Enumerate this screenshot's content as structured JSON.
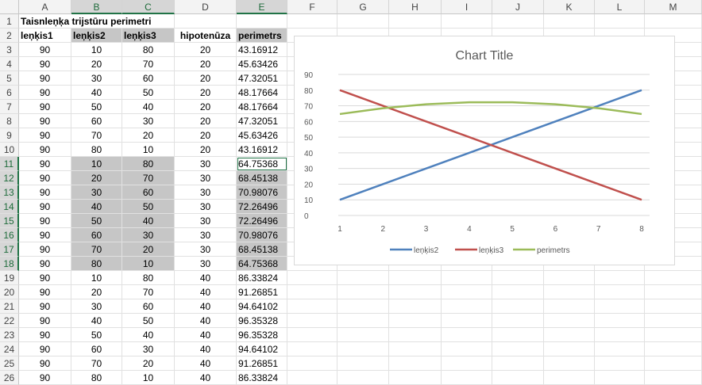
{
  "columns": [
    "A",
    "B",
    "C",
    "D",
    "E",
    "F",
    "G",
    "H",
    "I",
    "J",
    "K",
    "L",
    "M"
  ],
  "rows": [
    1,
    2,
    3,
    4,
    5,
    6,
    7,
    8,
    9,
    10,
    11,
    12,
    13,
    14,
    15,
    16,
    17,
    18,
    19,
    20,
    21,
    22,
    23,
    24,
    25,
    26
  ],
  "title_cell": "Taisnleņķa trijstūru perimetri",
  "headers": {
    "a": "leņķis1",
    "b": "leņķis2",
    "c": "leņķis3",
    "d": "hipotenūza",
    "e": "perimetrs"
  },
  "data": [
    [
      "90",
      "10",
      "80",
      "20",
      "43.16912"
    ],
    [
      "90",
      "20",
      "70",
      "20",
      "45.63426"
    ],
    [
      "90",
      "30",
      "60",
      "20",
      "47.32051"
    ],
    [
      "90",
      "40",
      "50",
      "20",
      "48.17664"
    ],
    [
      "90",
      "50",
      "40",
      "20",
      "48.17664"
    ],
    [
      "90",
      "60",
      "30",
      "20",
      "47.32051"
    ],
    [
      "90",
      "70",
      "20",
      "20",
      "45.63426"
    ],
    [
      "90",
      "80",
      "10",
      "20",
      "43.16912"
    ],
    [
      "90",
      "10",
      "80",
      "30",
      "64.75368"
    ],
    [
      "90",
      "20",
      "70",
      "30",
      "68.45138"
    ],
    [
      "90",
      "30",
      "60",
      "30",
      "70.98076"
    ],
    [
      "90",
      "40",
      "50",
      "30",
      "72.26496"
    ],
    [
      "90",
      "50",
      "40",
      "30",
      "72.26496"
    ],
    [
      "90",
      "60",
      "30",
      "30",
      "70.98076"
    ],
    [
      "90",
      "70",
      "20",
      "30",
      "68.45138"
    ],
    [
      "90",
      "80",
      "10",
      "30",
      "64.75368"
    ],
    [
      "90",
      "10",
      "80",
      "40",
      "86.33824"
    ],
    [
      "90",
      "20",
      "70",
      "40",
      "91.26851"
    ],
    [
      "90",
      "30",
      "60",
      "40",
      "94.64102"
    ],
    [
      "90",
      "40",
      "50",
      "40",
      "96.35328"
    ],
    [
      "90",
      "50",
      "40",
      "40",
      "96.35328"
    ],
    [
      "90",
      "60",
      "30",
      "40",
      "94.64102"
    ],
    [
      "90",
      "70",
      "20",
      "40",
      "91.26851"
    ],
    [
      "90",
      "80",
      "10",
      "40",
      "86.33824"
    ]
  ],
  "chart_data": {
    "type": "line",
    "title": "Chart Title",
    "categories": [
      "1",
      "2",
      "3",
      "4",
      "5",
      "6",
      "7",
      "8"
    ],
    "ylim": [
      0,
      90
    ],
    "yticks": [
      "0",
      "10",
      "20",
      "30",
      "40",
      "50",
      "60",
      "70",
      "80",
      "90"
    ],
    "grid": true,
    "legend": "bottom",
    "series": [
      {
        "name": "leņķis2",
        "color": "#4f81bd",
        "values": [
          10,
          20,
          30,
          40,
          50,
          60,
          70,
          80
        ]
      },
      {
        "name": "leņķis3",
        "color": "#c0504d",
        "values": [
          80,
          70,
          60,
          50,
          40,
          30,
          20,
          10
        ]
      },
      {
        "name": "perimetrs",
        "color": "#9bbb59",
        "values": [
          64.75368,
          68.45138,
          70.98076,
          72.26496,
          72.26496,
          70.98076,
          68.45138,
          64.75368
        ]
      }
    ]
  }
}
